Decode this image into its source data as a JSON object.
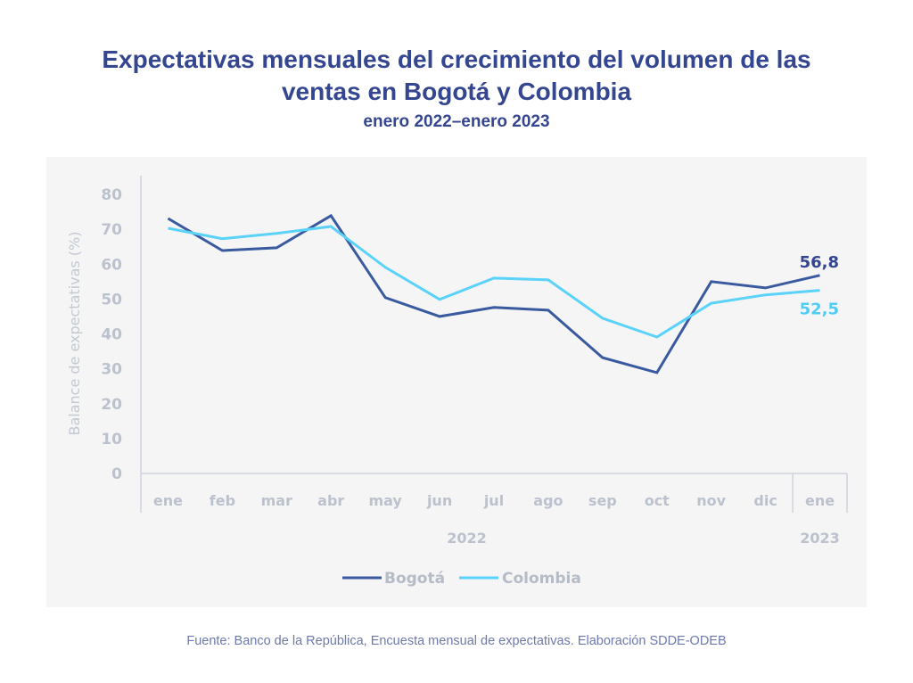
{
  "title_line1": "Expectativas mensuales del crecimiento del volumen de las",
  "title_line2": "ventas en Bogotá y Colombia",
  "subtitle": "enero 2022–enero 2023",
  "source": "Fuente: Banco de la República, Encuesta mensual de expectativas. Elaboración SDDE-ODEB",
  "chart_data": {
    "type": "line",
    "title": "Expectativas mensuales del crecimiento del volumen de las ventas en Bogotá y Colombia",
    "subtitle": "enero 2022–enero 2023",
    "xlabel": "",
    "ylabel": "Balance de expectativas (%)",
    "ylim": [
      0,
      80
    ],
    "yticks": [
      0,
      10,
      20,
      30,
      40,
      50,
      60,
      70,
      80
    ],
    "categories": [
      "ene",
      "feb",
      "mar",
      "abr",
      "may",
      "jun",
      "jul",
      "ago",
      "sep",
      "oct",
      "nov",
      "dic",
      "ene"
    ],
    "year_groups": [
      {
        "label": "2022",
        "from": 0,
        "to": 11
      },
      {
        "label": "2023",
        "from": 12,
        "to": 12
      }
    ],
    "grid": false,
    "legend": "bottom-center",
    "series": [
      {
        "name": "Bogotá",
        "color": "#3a5a9f",
        "values": [
          73.1,
          63.9,
          64.7,
          73.9,
          50.4,
          45.0,
          47.6,
          46.8,
          33.2,
          28.9,
          55.0,
          53.2,
          56.8
        ],
        "end_label": "56,8",
        "label_color": "#34468f"
      },
      {
        "name": "Colombia",
        "color": "#5ad2fa",
        "values": [
          70.3,
          67.3,
          68.8,
          70.8,
          59.1,
          49.9,
          56.0,
          55.5,
          44.5,
          39.1,
          48.8,
          51.2,
          52.5
        ],
        "end_label": "52,5",
        "label_color": "#4fcdf6"
      }
    ]
  }
}
